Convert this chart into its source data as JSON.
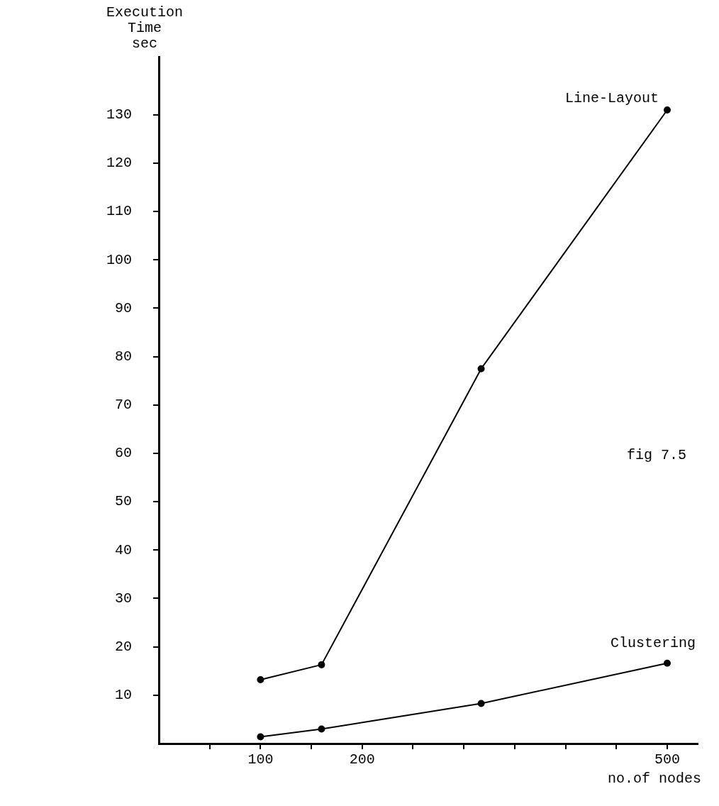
{
  "chart_data": {
    "type": "line",
    "ylabel": "Execution Time sec",
    "xlabel": "no.of nodes",
    "annotations": [
      "fig 7.5"
    ],
    "series": [
      {
        "name": "Line-Layout",
        "color": "#000000",
        "x": [
          100,
          160,
          317,
          500
        ],
        "values": [
          13.2,
          16.3,
          77.5,
          131
        ]
      },
      {
        "name": "Clustering",
        "color": "#000000",
        "x": [
          100,
          160,
          317,
          500
        ],
        "values": [
          1.4,
          3,
          8.3,
          16.6
        ]
      }
    ],
    "xlim": [
      0,
      530
    ],
    "xticks": [
      {
        "value": 50,
        "label": null
      },
      100,
      {
        "value": 150,
        "label": null
      },
      200,
      {
        "value": 250,
        "label": null
      },
      {
        "value": 300,
        "label": null
      },
      {
        "value": 350,
        "label": null
      },
      {
        "value": 400,
        "label": null
      },
      {
        "value": 450,
        "label": null
      },
      500
    ],
    "ylim": [
      0,
      142
    ],
    "yticks": [
      10,
      20,
      30,
      40,
      50,
      60,
      70,
      80,
      90,
      100,
      110,
      120,
      130
    ],
    "grid": false,
    "marker": "circle",
    "line_style": "solid"
  }
}
